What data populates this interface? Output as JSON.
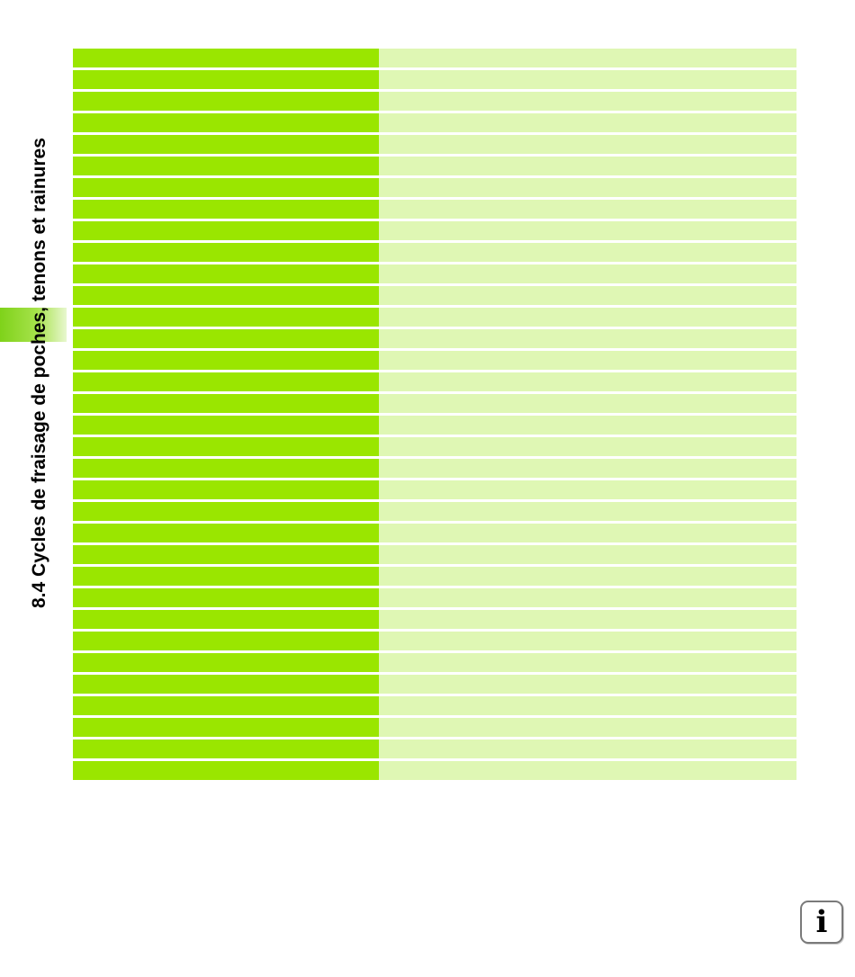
{
  "header": {
    "chapter_title": "8.4 Cycles de fraisage de poches, tenons et rainures"
  },
  "table": {
    "rows": [
      {
        "left": "",
        "right": ""
      },
      {
        "left": "",
        "right": ""
      },
      {
        "left": "",
        "right": ""
      },
      {
        "left": "",
        "right": ""
      },
      {
        "left": "",
        "right": ""
      },
      {
        "left": "",
        "right": ""
      },
      {
        "left": "",
        "right": ""
      },
      {
        "left": "",
        "right": ""
      },
      {
        "left": "",
        "right": ""
      },
      {
        "left": "",
        "right": ""
      },
      {
        "left": "",
        "right": ""
      },
      {
        "left": "",
        "right": ""
      },
      {
        "left": "",
        "right": ""
      },
      {
        "left": "",
        "right": ""
      },
      {
        "left": "",
        "right": ""
      },
      {
        "left": "",
        "right": ""
      },
      {
        "left": "",
        "right": ""
      },
      {
        "left": "",
        "right": ""
      },
      {
        "left": "",
        "right": ""
      },
      {
        "left": "",
        "right": ""
      },
      {
        "left": "",
        "right": ""
      },
      {
        "left": "",
        "right": ""
      },
      {
        "left": "",
        "right": ""
      },
      {
        "left": "",
        "right": ""
      },
      {
        "left": "",
        "right": ""
      },
      {
        "left": "",
        "right": ""
      },
      {
        "left": "",
        "right": ""
      },
      {
        "left": "",
        "right": ""
      },
      {
        "left": "",
        "right": ""
      },
      {
        "left": "",
        "right": ""
      },
      {
        "left": "",
        "right": ""
      },
      {
        "left": "",
        "right": ""
      },
      {
        "left": "",
        "right": ""
      },
      {
        "left": "",
        "right": ""
      }
    ]
  },
  "info_icon": {
    "glyph": "i",
    "icon": "info-icon"
  },
  "colors": {
    "left_column": "#9ae600",
    "right_column": "#dff7b4",
    "side_tab": "#7fd21a"
  }
}
